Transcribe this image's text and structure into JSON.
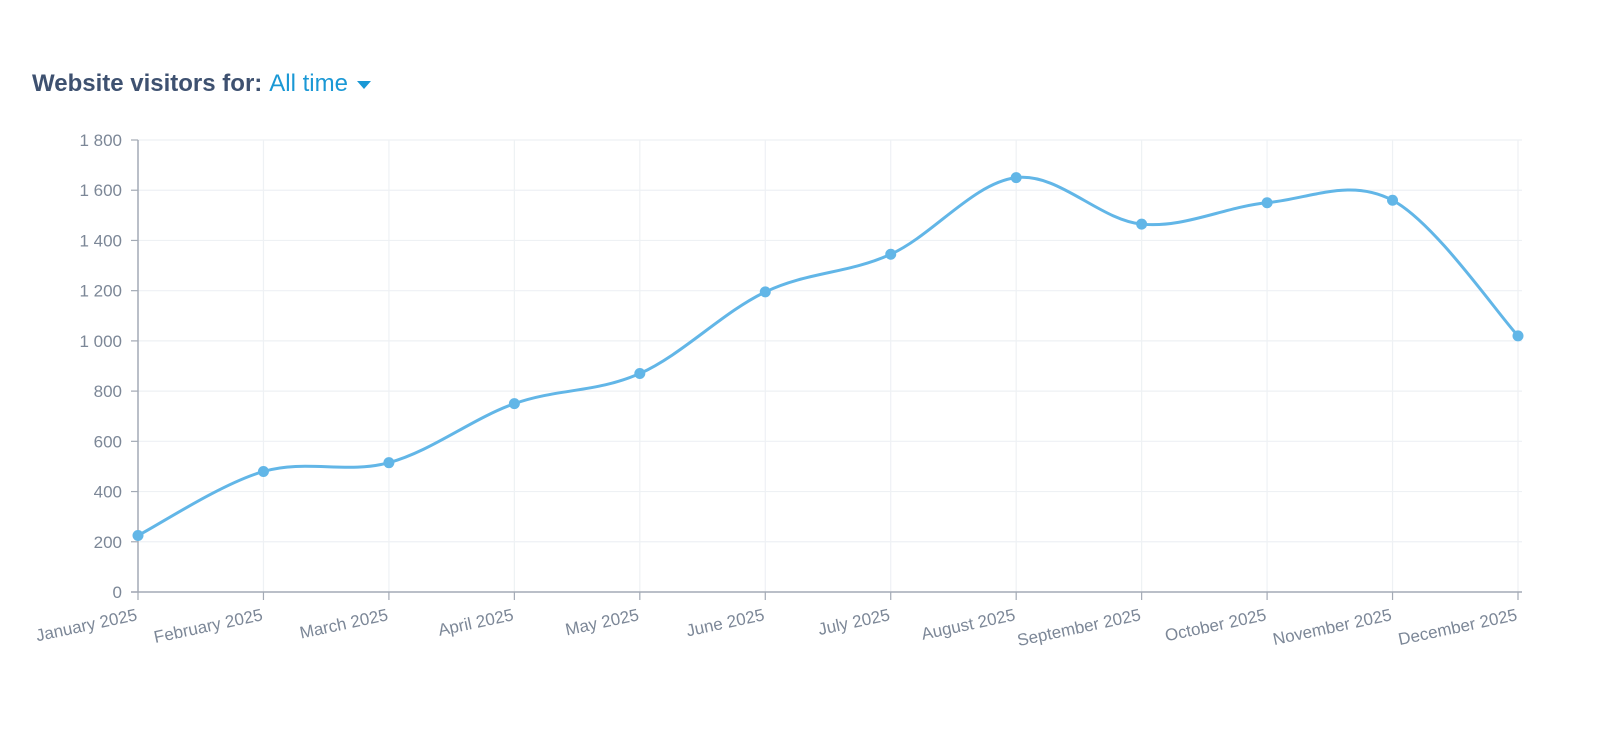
{
  "header": {
    "label": "Website visitors for:",
    "period": "All time"
  },
  "colors": {
    "line": "#62b6e7",
    "grid": "#eef1f4",
    "axis": "#a3aab5",
    "tick_text": "#7c8797",
    "header_text": "#3e5170",
    "accent": "#1a98d5"
  },
  "icons": {
    "dropdown": "caret-down-icon"
  },
  "chart_data": {
    "type": "line",
    "title": "",
    "xlabel": "",
    "ylabel": "",
    "categories": [
      "January 2025",
      "February 2025",
      "March 2025",
      "April 2025",
      "May 2025",
      "June 2025",
      "July 2025",
      "August 2025",
      "September 2025",
      "October 2025",
      "November 2025",
      "December 2025"
    ],
    "series": [
      {
        "values": [
          225,
          480,
          515,
          750,
          870,
          1195,
          1345,
          1650,
          1465,
          1550,
          1560,
          1020
        ]
      }
    ],
    "ylim": [
      0,
      1800
    ],
    "yticks": [
      0,
      200,
      400,
      600,
      800,
      1000,
      1200,
      1400,
      1600,
      1800
    ],
    "ytick_labels": [
      "0",
      "200",
      "400",
      "600",
      "800",
      "1 000",
      "1 200",
      "1 400",
      "1 600",
      "1 800"
    ],
    "grid": true,
    "legend": "none",
    "curve": "smooth"
  }
}
